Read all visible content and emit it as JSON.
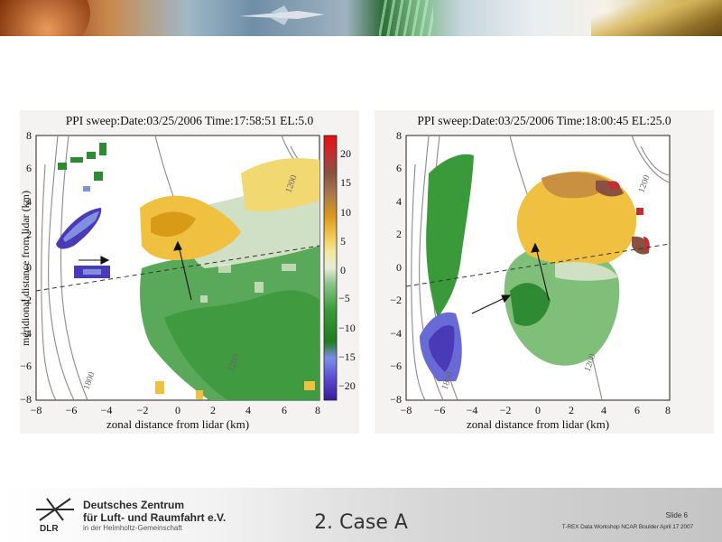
{
  "left_plot": {
    "title": "PPI sweep:Date:03/25/2006  Time:17:58:51  EL:5.0",
    "xlabel": "zonal distance from lidar (km)",
    "ylabel": "meridional distance from lidar (km)",
    "xticks": [
      "−8",
      "−6",
      "−4",
      "−2",
      "0",
      "2",
      "4",
      "6",
      "8"
    ],
    "yticks": [
      "8",
      "6",
      "4",
      "2",
      "0",
      "−2",
      "−4",
      "−6",
      "−8"
    ],
    "contour_labels": [
      "1200",
      "1200",
      "1800"
    ]
  },
  "right_plot": {
    "title": "PPI sweep:Date:03/25/2006  Time:18:00:45  EL:25.0",
    "xlabel": "zonal distance from lidar (km)",
    "xticks": [
      "−8",
      "−6",
      "−4",
      "−2",
      "0",
      "2",
      "4",
      "6",
      "8"
    ],
    "yticks": [
      "8",
      "6",
      "4",
      "2",
      "0",
      "−2",
      "−4",
      "−6",
      "−8"
    ],
    "contour_labels": [
      "1200",
      "1200",
      "1800"
    ]
  },
  "colorbar": {
    "ticks": [
      "20",
      "15",
      "10",
      "5",
      "0",
      "−5",
      "−10",
      "−15",
      "−20"
    ],
    "colors": [
      "#3a1a9a",
      "#5a5ad0",
      "#7c8ee8",
      "#1f7a22",
      "#3a9a3a",
      "#8cc48a",
      "#c8dcc0",
      "#f2f0c0",
      "#f2c850",
      "#d89a1a",
      "#a87850",
      "#8a5040",
      "#c03030",
      "#e01010"
    ]
  },
  "footer": {
    "org_line1": "Deutsches Zentrum",
    "org_line2": "für Luft- und Raumfahrt e.V.",
    "org_line3": "in der Helmholtz-Gemeinschaft",
    "org_abbr": "DLR",
    "slide_title": "2. Case A",
    "slide_number": "Slide 6",
    "event": "T-REX Data Workshop NCAR Boulder April 17 2007"
  }
}
